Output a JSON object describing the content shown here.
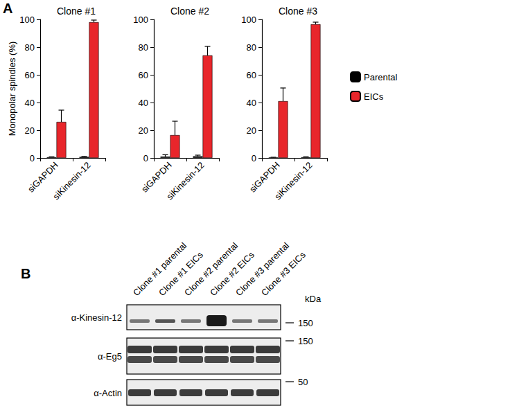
{
  "panel_labels": [
    "A",
    "B"
  ],
  "chart_data": [
    {
      "type": "bar",
      "title": "Clone #1",
      "ylabel": "Monopolar spindles (%)",
      "categories": [
        "siGAPDH",
        "siKinesin-12"
      ],
      "series": [
        {
          "name": "Parental",
          "color": "#000000",
          "values": [
            0.5,
            0.8
          ],
          "errors": [
            0.3,
            0.3
          ]
        },
        {
          "name": "EICs",
          "color": "#e8262b",
          "values": [
            26,
            98
          ],
          "errors": [
            8.5,
            1.5
          ]
        }
      ],
      "ylim": [
        0,
        100
      ],
      "yticks": [
        0,
        20,
        40,
        60,
        80,
        100
      ]
    },
    {
      "type": "bar",
      "title": "Clone #2",
      "categories": [
        "siGAPDH",
        "siKinesin-12"
      ],
      "series": [
        {
          "name": "Parental",
          "color": "#000000",
          "values": [
            1,
            1.2
          ],
          "errors": [
            1.3,
            0.8
          ]
        },
        {
          "name": "EICs",
          "color": "#e8262b",
          "values": [
            16.5,
            74
          ],
          "errors": [
            10,
            6.5
          ]
        }
      ],
      "ylim": [
        0,
        100
      ],
      "yticks": [
        0,
        20,
        40,
        60,
        80,
        100
      ]
    },
    {
      "type": "bar",
      "title": "Clone #3",
      "legend": "right",
      "categories": [
        "siGAPDH",
        "siKinesin-12"
      ],
      "series": [
        {
          "name": "Parental",
          "color": "#000000",
          "values": [
            0.3,
            0.5
          ],
          "errors": [
            0.2,
            0.3
          ]
        },
        {
          "name": "EICs",
          "color": "#e8262b",
          "values": [
            41,
            96.5
          ],
          "errors": [
            9.5,
            1.5
          ]
        }
      ],
      "ylim": [
        0,
        100
      ],
      "yticks": [
        0,
        20,
        40,
        60,
        80,
        100
      ]
    }
  ],
  "blot": {
    "lanes": [
      "Clone #1 parental",
      "Clone #1 EICs",
      "Clone #2 parental",
      "Clone #2 EICs",
      "Clone #3 parental",
      "Clone #3 EICs"
    ],
    "unit": "kDa",
    "rows": [
      {
        "label": "α-Kinesin-12",
        "marker": 150
      },
      {
        "label": "α-Eg5",
        "marker": 150
      },
      {
        "label": "α-Actin",
        "marker": 50
      }
    ]
  }
}
